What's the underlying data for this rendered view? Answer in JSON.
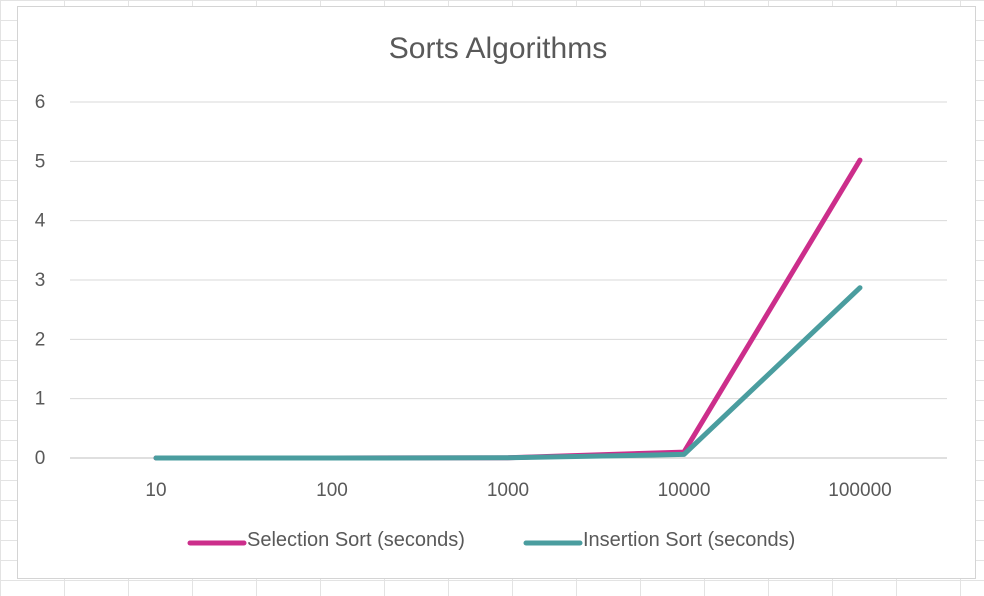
{
  "chart_data": {
    "type": "line",
    "title": "Sorts Algorithms",
    "xlabel": "",
    "ylabel": "",
    "categories": [
      "10",
      "100",
      "1000",
      "10000",
      "100000"
    ],
    "ylim": [
      0,
      6
    ],
    "yticks": [
      0,
      1,
      2,
      3,
      4,
      5,
      6
    ],
    "grid": true,
    "legend_position": "bottom",
    "series": [
      {
        "name": "Selection Sort (seconds)",
        "color": "#cc2e8b",
        "values": [
          0,
          0,
          0.005,
          0.1,
          5.02
        ]
      },
      {
        "name": "Insertion Sort (seconds)",
        "color": "#4a9d9f",
        "values": [
          0,
          0,
          0.003,
          0.06,
          2.87
        ]
      }
    ]
  }
}
